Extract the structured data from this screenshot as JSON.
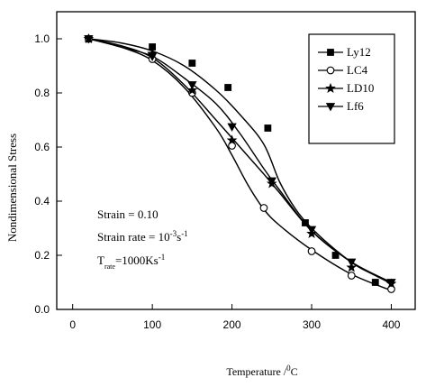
{
  "chart_data": {
    "type": "line",
    "xlabel": {
      "main": "Temperature /",
      "super": "0",
      "suffix": "C"
    },
    "ylabel": "Nondimensional Stress",
    "xlim": [
      -20,
      430
    ],
    "ylim": [
      0.0,
      1.1
    ],
    "x_ticks": [
      0,
      100,
      200,
      300,
      400
    ],
    "y_ticks": [
      0.0,
      0.2,
      0.4,
      0.6,
      0.8,
      1.0
    ],
    "x_tick_labels": [
      "0",
      "100",
      "200",
      "300",
      "400"
    ],
    "y_tick_labels": [
      "0.0",
      "0.2",
      "0.4",
      "0.6",
      "0.8",
      "1.0"
    ],
    "grid": false,
    "legend_position": "top-right",
    "series": [
      {
        "name": "Ly12",
        "marker": "filled-square",
        "color": "#000000",
        "points": [
          [
            20,
            1.0
          ],
          [
            100,
            0.97
          ],
          [
            150,
            0.91
          ],
          [
            195,
            0.82
          ],
          [
            245,
            0.67
          ],
          [
            292,
            0.32
          ],
          [
            330,
            0.2
          ],
          [
            380,
            0.1
          ]
        ],
        "curve": [
          [
            20,
            1.0
          ],
          [
            60,
            0.985
          ],
          [
            100,
            0.955
          ],
          [
            140,
            0.9
          ],
          [
            180,
            0.81
          ],
          [
            210,
            0.72
          ],
          [
            240,
            0.61
          ],
          [
            260,
            0.47
          ],
          [
            280,
            0.37
          ],
          [
            300,
            0.3
          ],
          [
            330,
            0.22
          ],
          [
            360,
            0.155
          ],
          [
            400,
            0.1
          ]
        ]
      },
      {
        "name": "LC4",
        "marker": "open-circle",
        "color": "#000000",
        "points": [
          [
            20,
            1.0
          ],
          [
            100,
            0.925
          ],
          [
            150,
            0.8
          ],
          [
            200,
            0.605
          ],
          [
            240,
            0.375
          ],
          [
            300,
            0.215
          ],
          [
            350,
            0.125
          ],
          [
            400,
            0.075
          ]
        ],
        "curve": [
          [
            20,
            1.0
          ],
          [
            60,
            0.97
          ],
          [
            100,
            0.92
          ],
          [
            140,
            0.82
          ],
          [
            180,
            0.67
          ],
          [
            200,
            0.57
          ],
          [
            220,
            0.46
          ],
          [
            240,
            0.37
          ],
          [
            260,
            0.31
          ],
          [
            300,
            0.22
          ],
          [
            350,
            0.13
          ],
          [
            400,
            0.07
          ]
        ]
      },
      {
        "name": "LD10",
        "marker": "filled-star",
        "color": "#000000",
        "points": [
          [
            20,
            1.0
          ],
          [
            100,
            0.945
          ],
          [
            150,
            0.81
          ],
          [
            200,
            0.625
          ],
          [
            250,
            0.465
          ],
          [
            300,
            0.28
          ],
          [
            350,
            0.155
          ],
          [
            400,
            0.095
          ]
        ],
        "curve": [
          [
            20,
            1.0
          ],
          [
            60,
            0.975
          ],
          [
            100,
            0.93
          ],
          [
            140,
            0.83
          ],
          [
            180,
            0.7
          ],
          [
            210,
            0.6
          ],
          [
            240,
            0.5
          ],
          [
            260,
            0.43
          ],
          [
            300,
            0.29
          ],
          [
            350,
            0.175
          ],
          [
            400,
            0.095
          ]
        ]
      },
      {
        "name": "Lf6",
        "marker": "filled-triangle-down",
        "color": "#000000",
        "points": [
          [
            20,
            1.0
          ],
          [
            100,
            0.935
          ],
          [
            150,
            0.83
          ],
          [
            200,
            0.675
          ],
          [
            250,
            0.475
          ],
          [
            300,
            0.295
          ],
          [
            350,
            0.175
          ],
          [
            400,
            0.1
          ]
        ],
        "curve": [
          [
            20,
            1.0
          ],
          [
            60,
            0.97
          ],
          [
            100,
            0.935
          ],
          [
            140,
            0.855
          ],
          [
            180,
            0.76
          ],
          [
            210,
            0.65
          ],
          [
            240,
            0.52
          ],
          [
            260,
            0.44
          ],
          [
            300,
            0.29
          ],
          [
            350,
            0.175
          ],
          [
            400,
            0.1
          ]
        ]
      }
    ],
    "annotations": [
      {
        "name": "strain",
        "text": "Strain = 0.10"
      },
      {
        "name": "strain-rate",
        "base": "Strain rate = 10",
        "super": "-3",
        "suffix": "s",
        "suffix_super": "-1"
      },
      {
        "name": "t-rate",
        "base": "T",
        "sub": "rate",
        "value": "=1000Ks",
        "value_super": "-1"
      }
    ]
  }
}
